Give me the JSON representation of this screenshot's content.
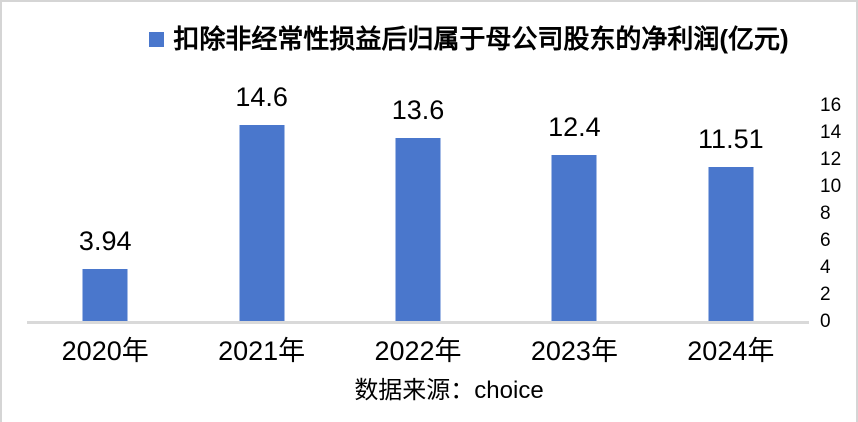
{
  "chart_data": {
    "type": "bar",
    "title": "扣除非经常性损益后归属于母公司股东的净利润(亿元)",
    "categories": [
      "2020年",
      "2021年",
      "2022年",
      "2023年",
      "2024年"
    ],
    "values": [
      3.94,
      14.6,
      13.6,
      12.4,
      11.51
    ],
    "value_labels": [
      "3.94",
      "14.6",
      "13.6",
      "12.4",
      "11.51"
    ],
    "xlabel": "",
    "ylabel": "",
    "ylim": [
      0,
      16
    ],
    "y_ticks": [
      0,
      2,
      4,
      6,
      8,
      10,
      12,
      14,
      16
    ],
    "y_axis_side": "right",
    "legend_position": "top",
    "grid": false,
    "bar_color": "#4A77CC",
    "axis_line_color": "#D9D9D9",
    "label_color": "#000000"
  },
  "source": {
    "text": "数据来源：choice"
  }
}
